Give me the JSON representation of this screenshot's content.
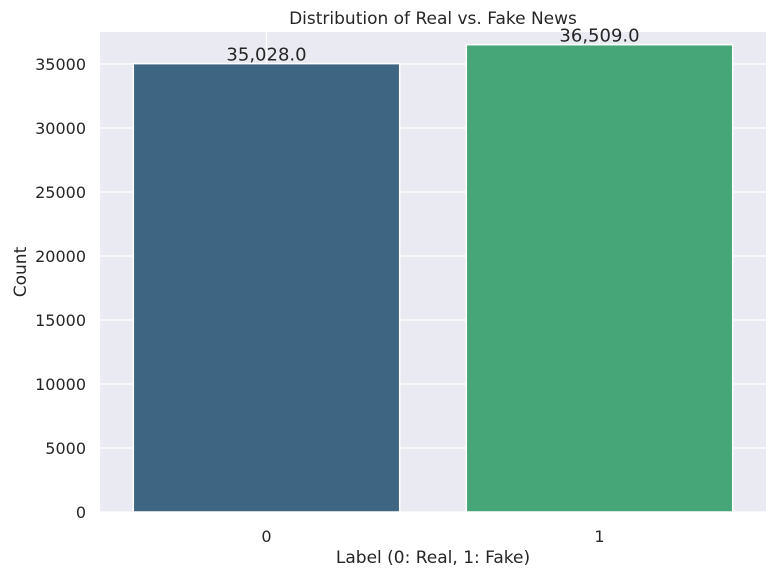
{
  "chart_data": {
    "type": "bar",
    "title": "Distribution of Real vs. Fake News",
    "xlabel": "Label (0: Real, 1: Fake)",
    "ylabel": "Count",
    "categories": [
      "0",
      "1"
    ],
    "values": [
      35028,
      36509
    ],
    "data_labels": [
      "35,028.0",
      "36,509.0"
    ],
    "colors": [
      "#3e6683",
      "#47a677"
    ],
    "ylim": [
      0,
      37500
    ],
    "yticks": [
      0,
      5000,
      10000,
      15000,
      20000,
      25000,
      30000,
      35000
    ],
    "ytick_labels": [
      "0",
      "5000",
      "10000",
      "15000",
      "20000",
      "25000",
      "30000",
      "35000"
    ],
    "grid": true,
    "background": "#eaeaf2"
  }
}
